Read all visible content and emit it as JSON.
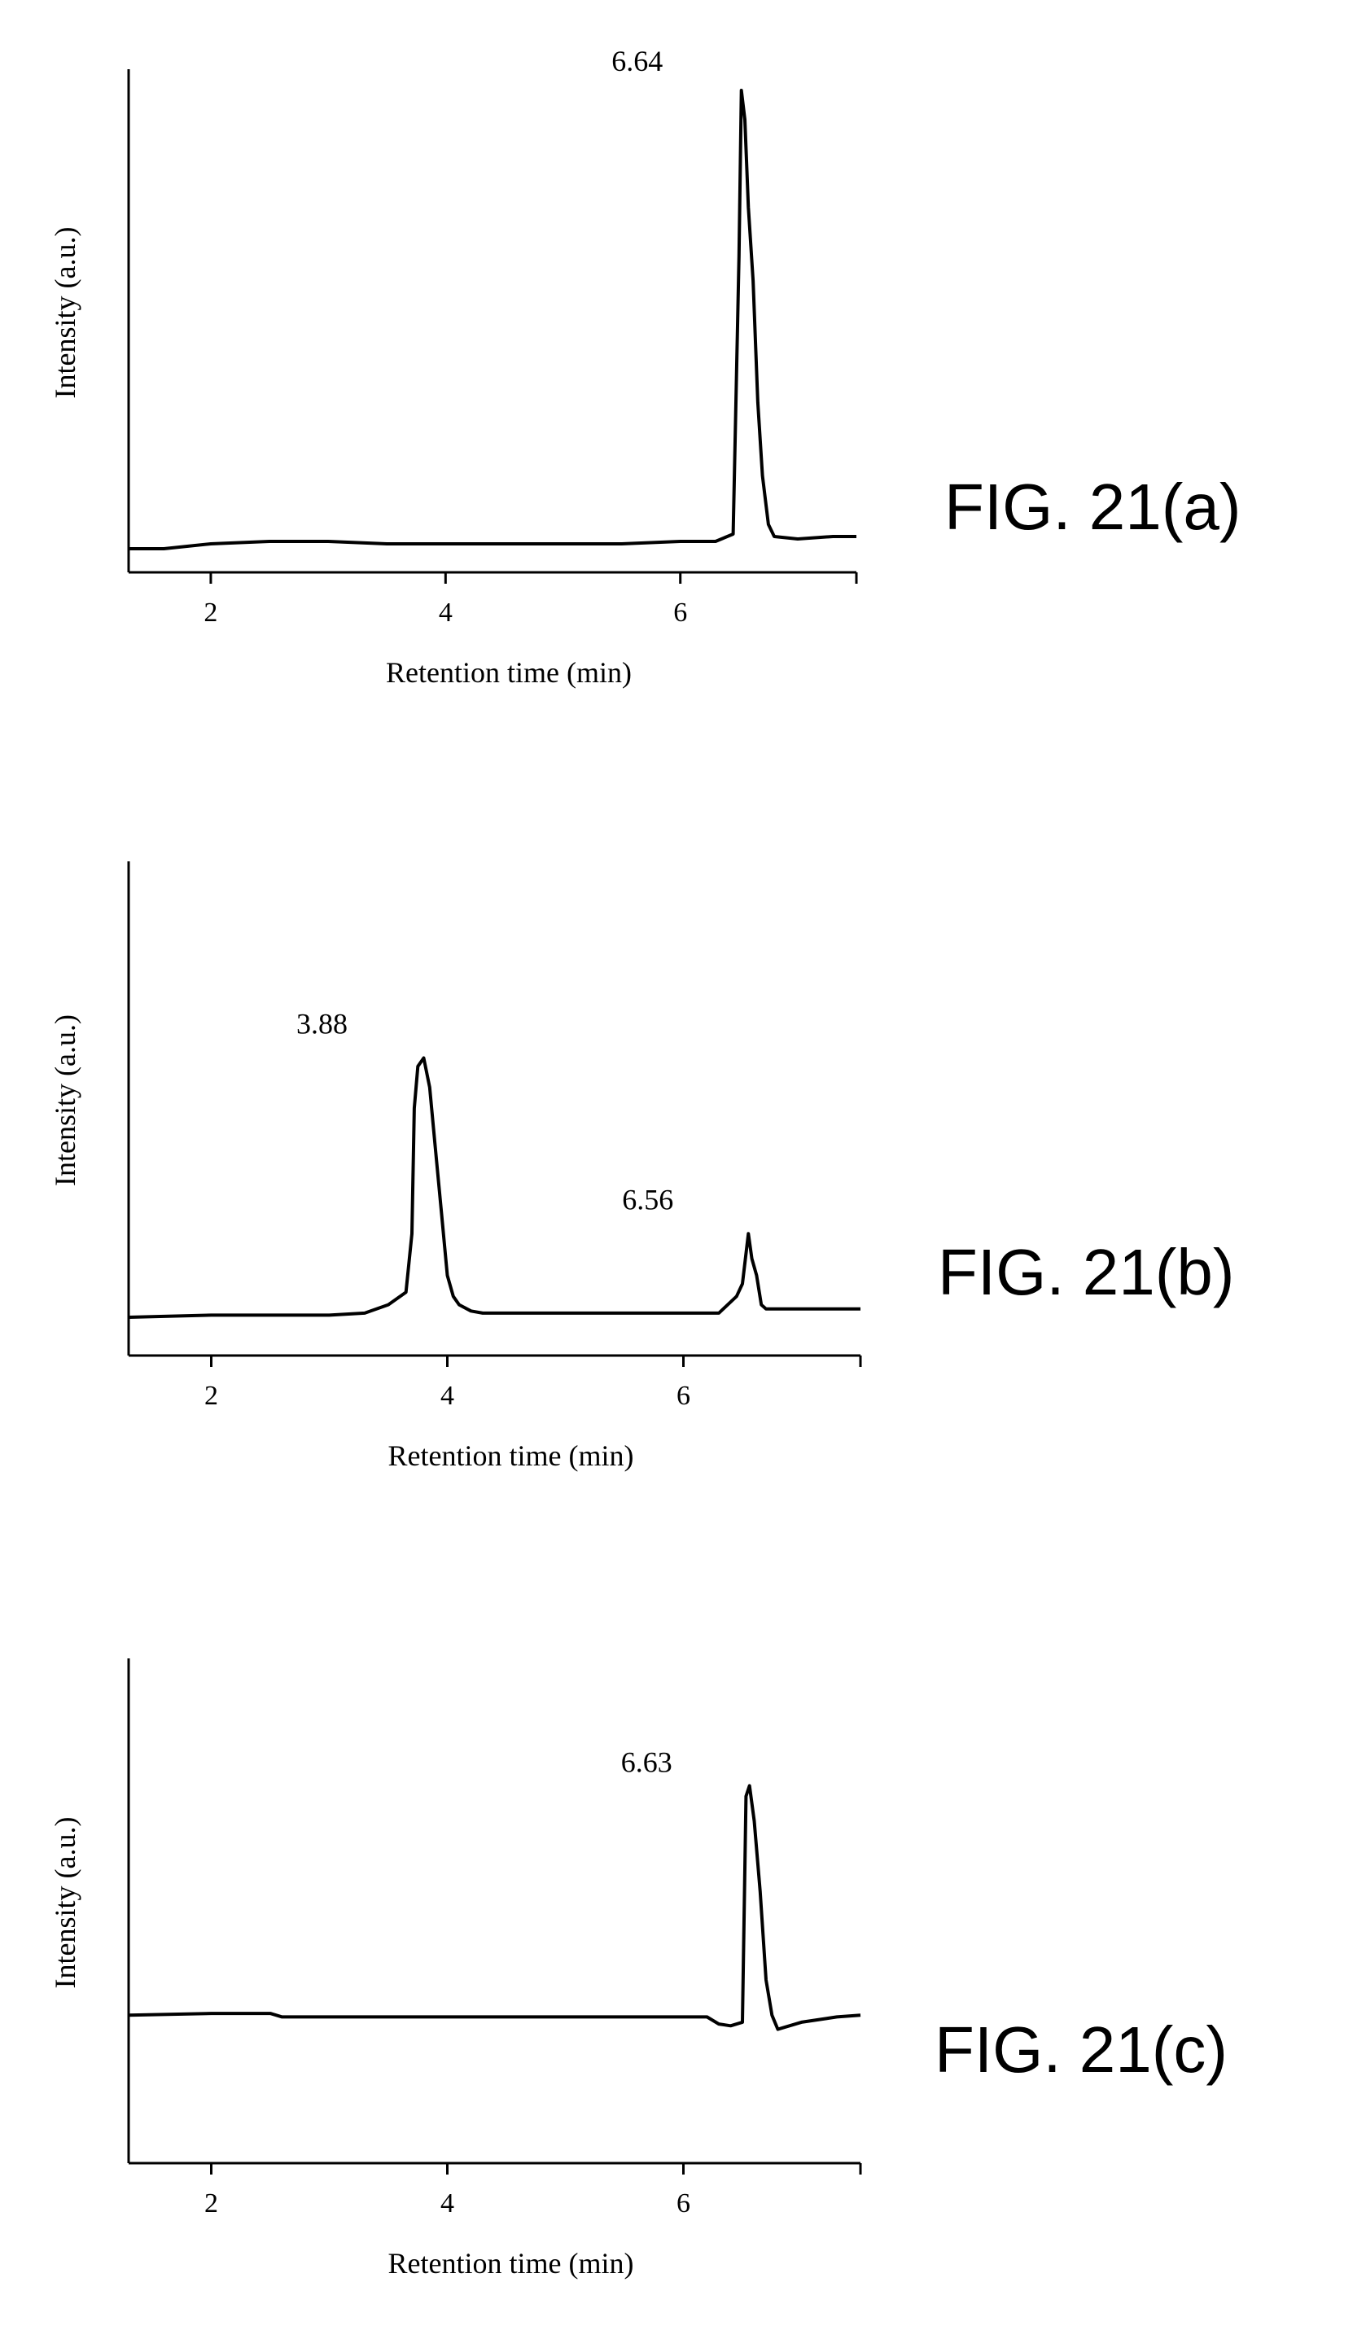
{
  "chart_data": [
    {
      "type": "line",
      "title": "",
      "figure_label": "FIG. 21(a)",
      "xlabel": "Retention time (min)",
      "ylabel": "Intensity (a.u.)",
      "xlim": [
        1.3,
        7.5
      ],
      "ylim": [
        0,
        100
      ],
      "x_ticks": [
        2,
        4,
        6
      ],
      "grid": false,
      "peaks": [
        {
          "label": "6.64",
          "x": 6.5,
          "y": 93
        }
      ],
      "series": [
        {
          "x": [
            1.3,
            1.6,
            2.0,
            2.5,
            3.0,
            3.5,
            4.0,
            4.5,
            5.0,
            5.5,
            6.0,
            6.3,
            6.45,
            6.5,
            6.52,
            6.55,
            6.58,
            6.62,
            6.66,
            6.7,
            6.75,
            6.8,
            7.0,
            7.3,
            7.5
          ],
          "y": [
            0,
            0,
            1,
            1.5,
            1.5,
            1,
            1,
            1,
            1,
            1,
            1.5,
            1.5,
            3,
            60,
            94,
            88,
            70,
            55,
            30,
            15,
            5,
            2.5,
            2,
            2.5,
            2.5
          ]
        }
      ]
    },
    {
      "type": "line",
      "title": "",
      "figure_label": "FIG. 21(b)",
      "xlabel": "Retention time (min)",
      "ylabel": "Intensity (a.u.)",
      "xlim": [
        1.3,
        7.5
      ],
      "ylim": [
        0,
        100
      ],
      "x_ticks": [
        2,
        4,
        6
      ],
      "grid": false,
      "peaks": [
        {
          "label": "3.88",
          "x": 3.8,
          "y": 62
        },
        {
          "label": "6.56",
          "x": 6.56,
          "y": 20
        }
      ],
      "series": [
        {
          "x": [
            1.3,
            2.0,
            2.5,
            3.0,
            3.3,
            3.5,
            3.65,
            3.7,
            3.72,
            3.75,
            3.8,
            3.85,
            3.9,
            3.95,
            4.0,
            4.05,
            4.1,
            4.2,
            4.3,
            5.0,
            5.5,
            6.0,
            6.3,
            6.45,
            6.5,
            6.55,
            6.58,
            6.62,
            6.66,
            6.7,
            7.0,
            7.5
          ],
          "y": [
            0,
            0.5,
            0.5,
            0.5,
            1,
            3,
            6,
            20,
            50,
            60,
            62,
            55,
            40,
            25,
            10,
            5,
            3,
            1.5,
            1,
            1,
            1,
            1,
            1,
            5,
            8,
            20,
            14,
            10,
            3,
            2,
            2,
            2
          ]
        }
      ]
    },
    {
      "type": "line",
      "title": "",
      "figure_label": "FIG. 21(c)",
      "xlabel": "Retention time (min)",
      "ylabel": "Intensity (a.u.)",
      "xlim": [
        1.3,
        7.5
      ],
      "ylim": [
        0,
        100
      ],
      "x_ticks": [
        2,
        4,
        6
      ],
      "grid": false,
      "peaks": [
        {
          "label": "6.63",
          "x": 6.55,
          "y": 82
        }
      ],
      "series": [
        {
          "x": [
            1.3,
            2.0,
            2.5,
            2.6,
            3.0,
            3.5,
            4.0,
            4.5,
            5.0,
            5.5,
            6.0,
            6.2,
            6.3,
            6.4,
            6.5,
            6.53,
            6.56,
            6.6,
            6.65,
            6.7,
            6.75,
            6.8,
            7.0,
            7.3,
            7.5
          ],
          "y": [
            20,
            20.5,
            20.5,
            19.5,
            19.5,
            19.5,
            19.5,
            19.5,
            19.5,
            19.5,
            19.5,
            19.5,
            17.5,
            17,
            18,
            82,
            85,
            75,
            55,
            30,
            20,
            16,
            18,
            19.5,
            20
          ]
        }
      ]
    }
  ]
}
